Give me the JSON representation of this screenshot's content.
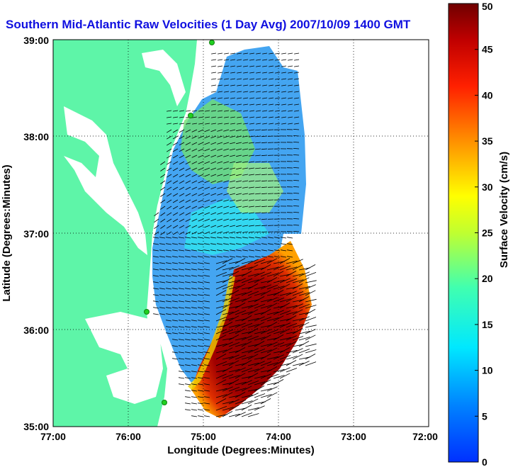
{
  "title": "Southern Mid-Atlantic Raw Velocities (1 Day Avg) 2007/10/09 1400 GMT",
  "xlabel": "Longitude (Degrees:Minutes)",
  "ylabel": "Latitude (Degrees:Minutes)",
  "x_ticks": [
    "77:00",
    "76:00",
    "75:00",
    "74:00",
    "73:00",
    "72:00"
  ],
  "y_ticks": [
    "39:00",
    "38:00",
    "37:00",
    "36:00",
    "35:00"
  ],
  "colorbar": {
    "label": "Surface Velocity (cm/s)",
    "ticks": [
      "50",
      "45",
      "40",
      "35",
      "30",
      "25",
      "20",
      "15",
      "10",
      "5",
      "0"
    ],
    "range": [
      0,
      50
    ]
  },
  "colors": {
    "land": "#5ef5a8",
    "title": "#1010e0",
    "vectors": "#000000"
  }
}
